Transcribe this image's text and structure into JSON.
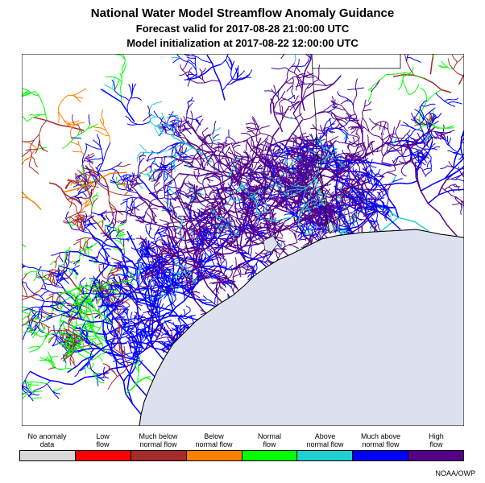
{
  "title": {
    "main": "National Water Model Streamflow Anomaly Guidance",
    "forecast": "Forecast valid for 2017-08-28 21:00:00 UTC",
    "initialization": "Model initialization at 2017-08-22 12:00:00 UTC"
  },
  "legend": [
    {
      "line1": "No anomaly",
      "line2": "data",
      "color": "#d9d9d9"
    },
    {
      "line1": "Low",
      "line2": "flow",
      "color": "#ff0000"
    },
    {
      "line1": "Much below",
      "line2": "normal flow",
      "color": "#a52a2a"
    },
    {
      "line1": "Below",
      "line2": "normal flow",
      "color": "#ff8000"
    },
    {
      "line1": "Normal",
      "line2": "flow",
      "color": "#00ff00"
    },
    {
      "line1": "Above",
      "line2": "normal flow",
      "color": "#20d0d0"
    },
    {
      "line1": "Much above",
      "line2": "normal flow",
      "color": "#0000ff"
    },
    {
      "line1": "High",
      "line2": "flow",
      "color": "#550088"
    }
  ],
  "water_color": "#dde0ee",
  "credit": "NOAA/OWP"
}
